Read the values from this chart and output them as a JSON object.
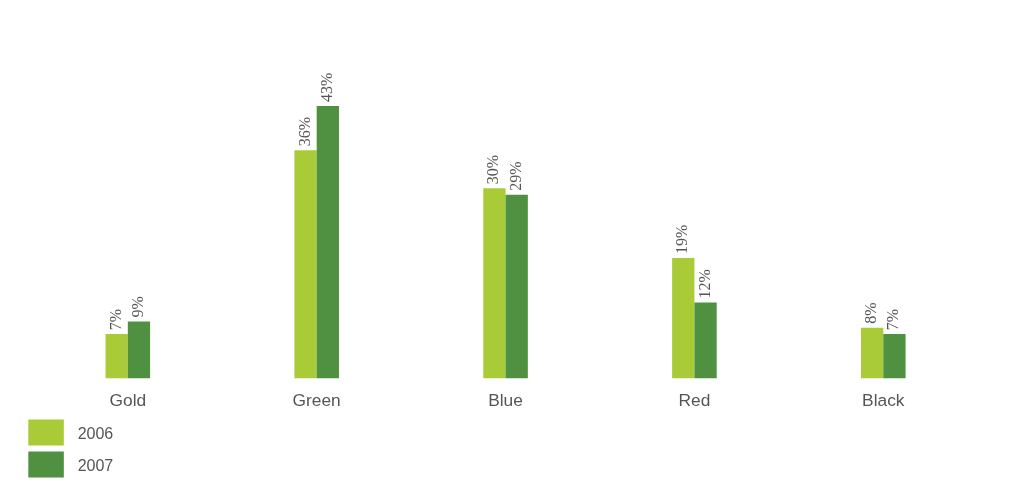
{
  "chart_data": {
    "type": "bar",
    "categories": [
      "Gold",
      "Green",
      "Blue",
      "Red",
      "Black"
    ],
    "series": [
      {
        "name": "2006",
        "color": "#a9cb37",
        "values": [
          7,
          36,
          30,
          19,
          8
        ],
        "value_labels": [
          "7%",
          "36%",
          "30%",
          "19%",
          "8%"
        ]
      },
      {
        "name": "2007",
        "color": "#4f9140",
        "values": [
          9,
          43,
          29,
          12,
          7
        ],
        "value_labels": [
          "9%",
          "43%",
          "29%",
          "12%",
          "7%"
        ]
      }
    ],
    "legend": "bottom left"
  }
}
